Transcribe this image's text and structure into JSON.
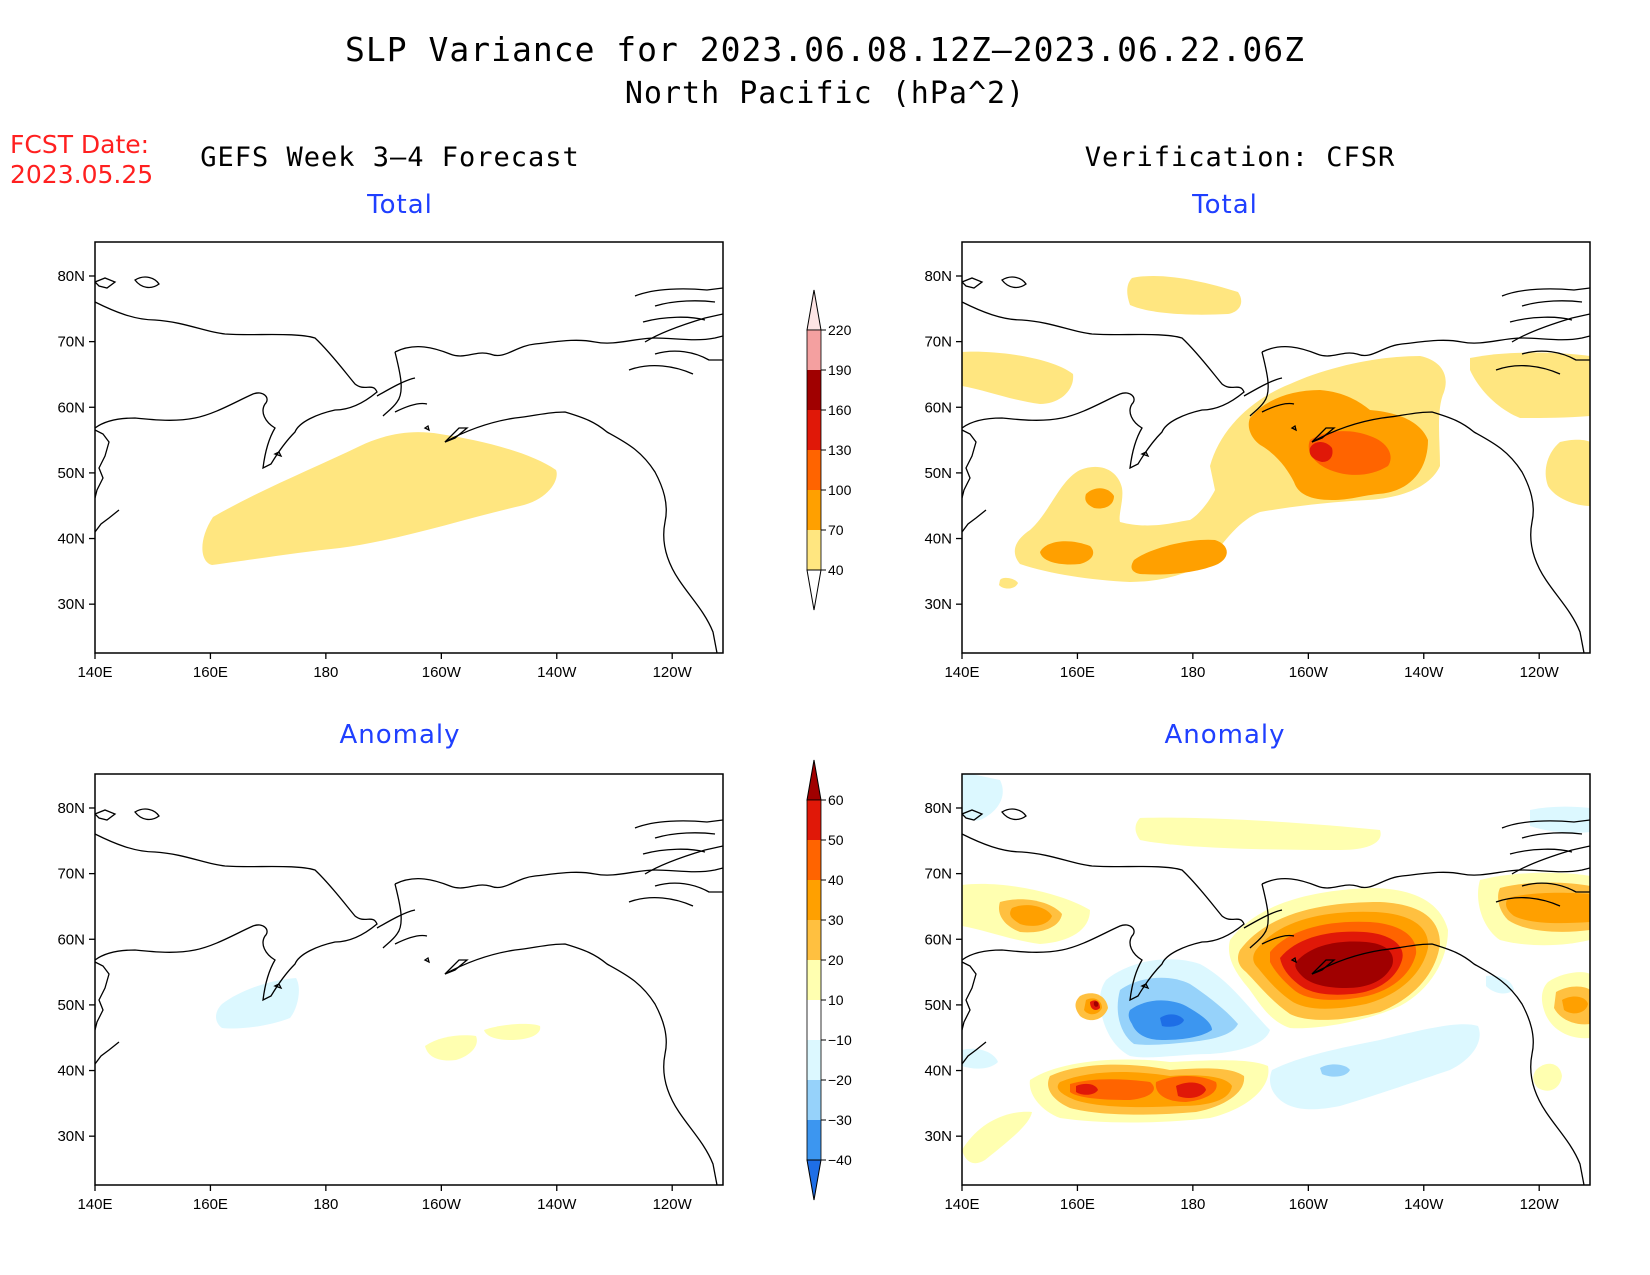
{
  "title": {
    "line1": "SLP Variance for 2023.06.08.12Z–2023.06.22.06Z",
    "line2": "North Pacific (hPa^2)"
  },
  "fcst": {
    "line1": "FCST Date:",
    "line2": "2023.05.25"
  },
  "columns": {
    "left": "GEFS Week 3–4 Forecast",
    "right": "Verification: CFSR"
  },
  "panels": [
    {
      "id": "gefs-total",
      "subtitle": "Total"
    },
    {
      "id": "cfsr-total",
      "subtitle": "Total"
    },
    {
      "id": "gefs-anomaly",
      "subtitle": "Anomaly"
    },
    {
      "id": "cfsr-anomaly",
      "subtitle": "Anomaly"
    }
  ],
  "axes": {
    "lon_labels": [
      "140E",
      "160E",
      "180",
      "160W",
      "140W",
      "120W"
    ],
    "lat_labels": [
      "80N",
      "70N",
      "60N",
      "50N",
      "40N",
      "30N"
    ]
  },
  "colorbars": {
    "total": {
      "labels": [
        "220",
        "190",
        "160",
        "130",
        "100",
        "70",
        "40"
      ],
      "colors": [
        "#f4a0a0",
        "#a00000",
        "#e01808",
        "#ff6400",
        "#ffa000",
        "#ffe680"
      ]
    },
    "anomaly": {
      "labels": [
        "60",
        "50",
        "40",
        "30",
        "20",
        "10",
        "−10",
        "−20",
        "−30",
        "−40"
      ],
      "colors": [
        "#a00000",
        "#e01808",
        "#ff6400",
        "#ffa000",
        "#ffc040",
        "#ffffb0",
        "#ffffff",
        "#dcf8ff",
        "#96d2fa",
        "#3c96f0",
        "#1e6ee6"
      ]
    }
  }
}
